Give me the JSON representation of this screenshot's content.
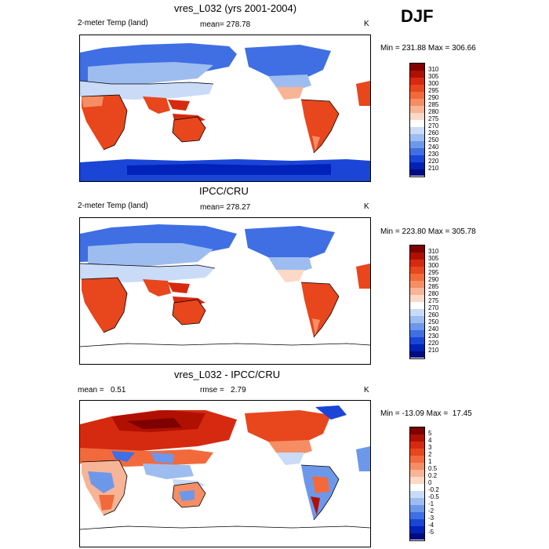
{
  "season": "DJF",
  "panels": [
    {
      "title": "vres_L032 (yrs 2001-2004)",
      "left_label": "2-meter Temp (land)",
      "center_label": "mean= 278.78",
      "right_label": "K",
      "minmax": "Min = 231.88 Max = 306.66",
      "colorbar_labels": [
        "310",
        "305",
        "300",
        "295",
        "290",
        "285",
        "280",
        "275",
        "270",
        "260",
        "250",
        "240",
        "230",
        "220",
        "210"
      ]
    },
    {
      "title": "IPCC/CRU",
      "left_label": "2-meter Temp (land)",
      "center_label": "mean= 278.27",
      "right_label": "K",
      "minmax": "Min = 223.80 Max = 305.78",
      "colorbar_labels": [
        "310",
        "305",
        "300",
        "295",
        "290",
        "285",
        "280",
        "275",
        "270",
        "260",
        "250",
        "240",
        "230",
        "220",
        "210"
      ]
    },
    {
      "title": "vres_L032 - IPCC/CRU",
      "left_label": "mean =   0.51",
      "center_label": "rmse =   2.79",
      "right_label": "K",
      "minmax": "Min = -13.09 Max =  17.45",
      "colorbar_labels": [
        "5",
        "4",
        "3",
        "2",
        "1",
        "0.5",
        "0.2",
        "0",
        "-0.2",
        "-0.5",
        "-1",
        "-2",
        "-3",
        "-4",
        "-5"
      ]
    }
  ],
  "colors": {
    "scale": [
      "#7f0000",
      "#b01000",
      "#d62a10",
      "#e8461c",
      "#f26a3c",
      "#f58e64",
      "#f8b496",
      "#fbd9c6",
      "#ffffff",
      "#c9dbf7",
      "#9dbdf0",
      "#6d98ea",
      "#3f6fe3",
      "#1a45d6",
      "#0022b8",
      "#000c80"
    ]
  }
}
